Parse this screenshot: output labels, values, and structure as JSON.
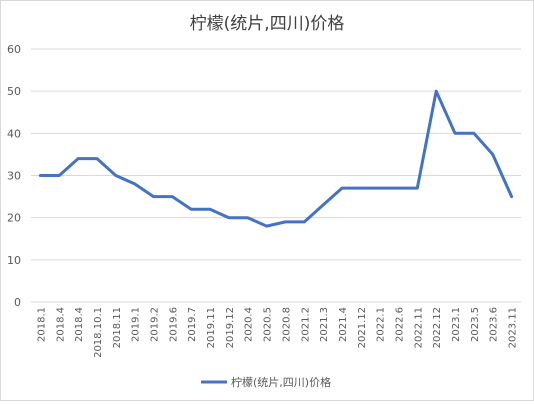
{
  "chart_data": {
    "type": "line",
    "title": "柠檬(统片,四川)价格",
    "xlabel": "",
    "ylabel": "",
    "ylim": [
      0,
      60
    ],
    "yticks": [
      0,
      10,
      20,
      30,
      40,
      50,
      60
    ],
    "grid": true,
    "legend_position": "bottom",
    "categories": [
      "2018.1",
      "2018.4",
      "2018.4",
      "2018.10.1",
      "2018.11",
      "2019.1",
      "2019.2",
      "2019.6",
      "2019.7",
      "2019.11",
      "2019.12",
      "2020.4",
      "2020.5",
      "2020.8",
      "2021.2",
      "2021.3",
      "2021.4",
      "2021.12",
      "2022.1",
      "2022.6",
      "2022.11",
      "2022.12",
      "2023.1",
      "2023.5",
      "2023.6",
      "2023.11"
    ],
    "series": [
      {
        "name": "柠檬(统片,四川)价格",
        "color": "#4472c4",
        "values": [
          30,
          30,
          34,
          34,
          30,
          28,
          25,
          25,
          22,
          22,
          20,
          20,
          18,
          19,
          19,
          23,
          27,
          27,
          27,
          27,
          27,
          50,
          40,
          40,
          35,
          25
        ]
      }
    ]
  }
}
